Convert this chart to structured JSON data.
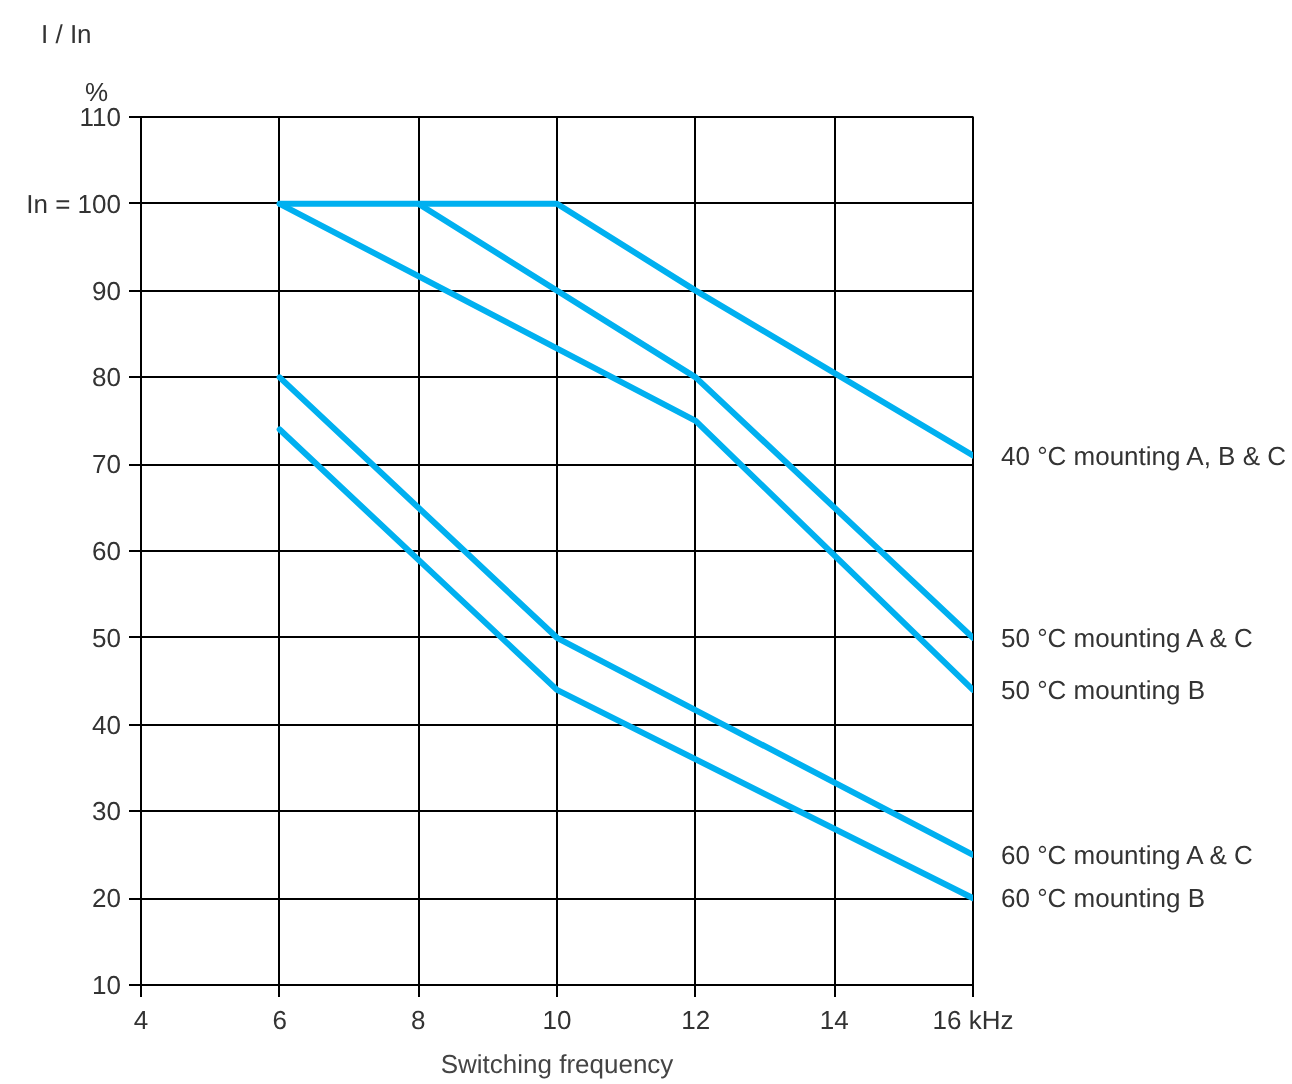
{
  "chart_data": {
    "type": "line",
    "ylabel": "I / In",
    "xlabel": "Switching frequency",
    "annotations": [
      "%"
    ],
    "xlim": [
      4,
      16
    ],
    "ylim": [
      10,
      110
    ],
    "xticks": [
      4,
      6,
      8,
      10,
      12,
      14,
      {
        "value": 16,
        "label": "16 kHz"
      }
    ],
    "yticks": [
      10,
      20,
      30,
      40,
      50,
      60,
      70,
      80,
      90,
      {
        "value": 100,
        "label": "In = 100"
      },
      110
    ],
    "grid": true,
    "marker": "none",
    "line_style": "solid",
    "series": [
      {
        "name": "40 °C mounting A, B & C",
        "color": "#00b0f0",
        "x": [
          6,
          10,
          12,
          16
        ],
        "values": [
          100,
          100,
          90,
          71
        ]
      },
      {
        "name": "50 °C mounting A & C",
        "color": "#00b0f0",
        "x": [
          8,
          12,
          16
        ],
        "values": [
          100,
          80,
          50
        ]
      },
      {
        "name": "50 °C mounting B",
        "color": "#00b0f0",
        "x": [
          6,
          12,
          16
        ],
        "values": [
          100,
          75,
          44
        ]
      },
      {
        "name": "60 °C mounting A & C",
        "color": "#00b0f0",
        "x": [
          6,
          10,
          16
        ],
        "values": [
          80,
          50,
          25
        ]
      },
      {
        "name": "60 °C mounting B",
        "color": "#00b0f0",
        "x": [
          6,
          10,
          16
        ],
        "values": [
          74,
          44,
          20
        ]
      }
    ]
  }
}
